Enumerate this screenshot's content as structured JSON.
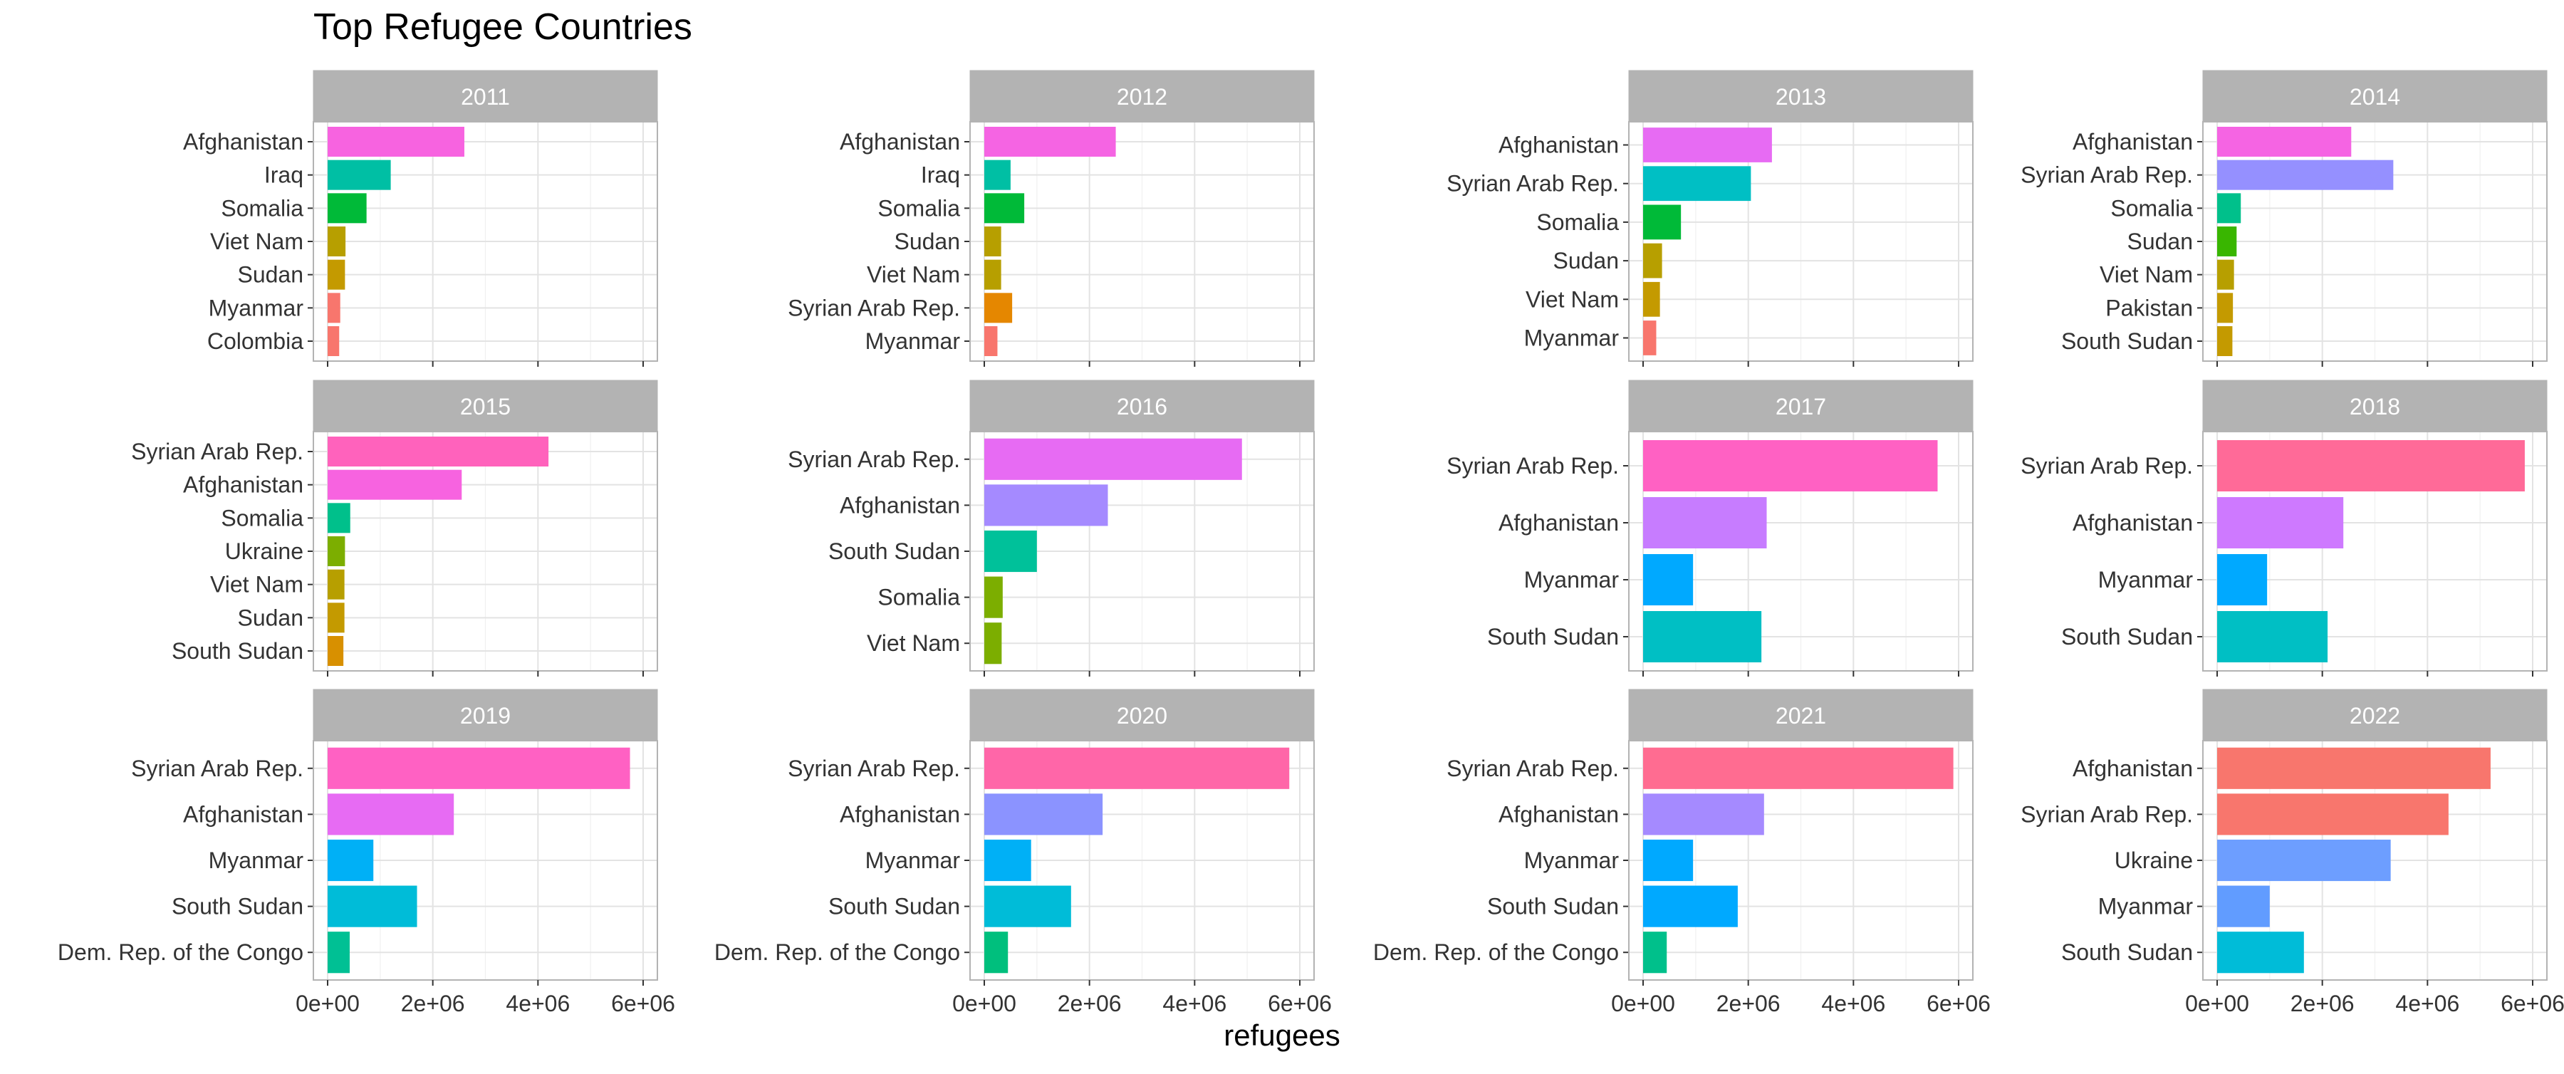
{
  "chart_data": {
    "type": "bar",
    "title": "Top Refugee Countries",
    "xlabel": "refugees",
    "ylabel": "",
    "xlim": [
      0,
      6000000
    ],
    "x_ticks": [
      0,
      2000000,
      4000000,
      6000000
    ],
    "x_tick_labels": [
      "0e+00",
      "2e+06",
      "4e+06",
      "6e+06"
    ],
    "grid": true,
    "facets": [
      {
        "year": "2011",
        "categories": [
          "Afghanistan",
          "Iraq",
          "Somalia",
          "Viet Nam",
          "Sudan",
          "Myanmar",
          "Colombia"
        ],
        "values": [
          2600000,
          1200000,
          740000,
          340000,
          330000,
          240000,
          220000
        ],
        "colors": [
          "#F763E0",
          "#00BFA4",
          "#00BA38",
          "#B79F00",
          "#C49A00",
          "#F8766D",
          "#F8766D"
        ]
      },
      {
        "year": "2012",
        "categories": [
          "Afghanistan",
          "Iraq",
          "Somalia",
          "Sudan",
          "Viet Nam",
          "Syrian Arab Rep.",
          "Myanmar"
        ],
        "values": [
          2500000,
          500000,
          760000,
          320000,
          320000,
          530000,
          250000
        ],
        "colors": [
          "#F564E3",
          "#00BFA4",
          "#00BA38",
          "#B79F00",
          "#B79F00",
          "#E58700",
          "#F8766D"
        ]
      },
      {
        "year": "2013",
        "categories": [
          "Afghanistan",
          "Syrian Arab Rep.",
          "Somalia",
          "Sudan",
          "Viet Nam",
          "Myanmar"
        ],
        "values": [
          2450000,
          2050000,
          720000,
          360000,
          320000,
          250000
        ],
        "colors": [
          "#E76BF3",
          "#00BFC4",
          "#00BA38",
          "#B79F00",
          "#C49A00",
          "#F8766D"
        ]
      },
      {
        "year": "2014",
        "categories": [
          "Afghanistan",
          "Syrian Arab Rep.",
          "Somalia",
          "Sudan",
          "Viet Nam",
          "Pakistan",
          "South Sudan"
        ],
        "values": [
          2550000,
          3350000,
          450000,
          370000,
          320000,
          300000,
          290000
        ],
        "colors": [
          "#F564E3",
          "#9590FF",
          "#00C08B",
          "#39B600",
          "#B79F00",
          "#C49A00",
          "#C49A00"
        ]
      },
      {
        "year": "2015",
        "categories": [
          "Syrian Arab Rep.",
          "Afghanistan",
          "Somalia",
          "Ukraine",
          "Viet Nam",
          "Sudan",
          "South Sudan"
        ],
        "values": [
          4200000,
          2550000,
          430000,
          330000,
          320000,
          320000,
          300000
        ],
        "colors": [
          "#FF62BC",
          "#F763E0",
          "#00C08B",
          "#7CAE00",
          "#B79F00",
          "#C49A00",
          "#D89000"
        ]
      },
      {
        "year": "2016",
        "categories": [
          "Syrian Arab Rep.",
          "Afghanistan",
          "South Sudan",
          "Somalia",
          "Viet Nam"
        ],
        "values": [
          4900000,
          2350000,
          1000000,
          350000,
          330000
        ],
        "colors": [
          "#E76BF3",
          "#A58AFF",
          "#00C19A",
          "#7CAE00",
          "#7CAE00"
        ]
      },
      {
        "year": "2017",
        "categories": [
          "Syrian Arab Rep.",
          "Afghanistan",
          "Myanmar",
          "South Sudan"
        ],
        "values": [
          5600000,
          2350000,
          950000,
          2250000
        ],
        "colors": [
          "#FF61C3",
          "#C77CFF",
          "#00A9FF",
          "#00BFC4"
        ]
      },
      {
        "year": "2018",
        "categories": [
          "Syrian Arab Rep.",
          "Afghanistan",
          "Myanmar",
          "South Sudan"
        ],
        "values": [
          5850000,
          2400000,
          950000,
          2100000
        ],
        "colors": [
          "#FF6A98",
          "#CE79FF",
          "#00A9FF",
          "#00BFC4"
        ]
      },
      {
        "year": "2019",
        "categories": [
          "Syrian Arab Rep.",
          "Afghanistan",
          "Myanmar",
          "South Sudan",
          "Dem. Rep. of the Congo"
        ],
        "values": [
          5750000,
          2400000,
          870000,
          1700000,
          420000
        ],
        "colors": [
          "#FF61C3",
          "#E76BF3",
          "#00B0F6",
          "#00BCD8",
          "#00C094"
        ]
      },
      {
        "year": "2020",
        "categories": [
          "Syrian Arab Rep.",
          "Afghanistan",
          "Myanmar",
          "South Sudan",
          "Dem. Rep. of the Congo"
        ],
        "values": [
          5800000,
          2250000,
          890000,
          1650000,
          450000
        ],
        "colors": [
          "#FF66A8",
          "#8B93FF",
          "#00B0F6",
          "#00BCD8",
          "#00BF7D"
        ]
      },
      {
        "year": "2021",
        "categories": [
          "Syrian Arab Rep.",
          "Afghanistan",
          "Myanmar",
          "South Sudan",
          "Dem. Rep. of the Congo"
        ],
        "values": [
          5900000,
          2300000,
          950000,
          1800000,
          450000
        ],
        "colors": [
          "#FF6C91",
          "#A58AFF",
          "#00A9FF",
          "#00A9FF",
          "#00C08B"
        ]
      },
      {
        "year": "2022",
        "categories": [
          "Afghanistan",
          "Syrian Arab Rep.",
          "Ukraine",
          "Myanmar",
          "South Sudan"
        ],
        "values": [
          5200000,
          4400000,
          3300000,
          1000000,
          1650000
        ],
        "colors": [
          "#F8766D",
          "#F8766D",
          "#6D9EFF",
          "#619CFF",
          "#00BCD8"
        ]
      }
    ]
  }
}
